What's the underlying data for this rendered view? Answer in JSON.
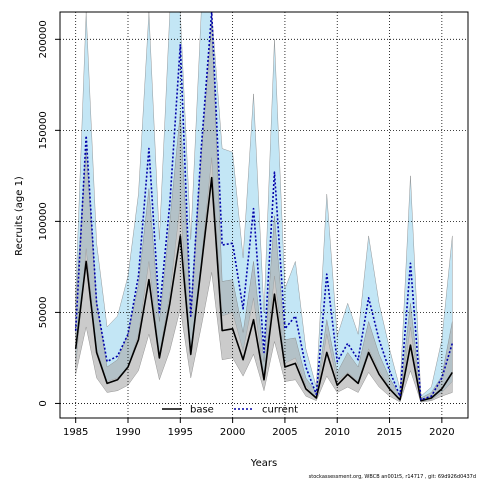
{
  "chart_data": {
    "type": "line",
    "xlabel": "Years",
    "ylabel": "Recruits (age 1)",
    "xlim": [
      1983.5,
      2022.5
    ],
    "ylim": [
      -8000,
      215000
    ],
    "x_ticks": [
      1985,
      1990,
      1995,
      2000,
      2005,
      2010,
      2015,
      2020
    ],
    "x_tick_labels": [
      "1985",
      "1990",
      "1995",
      "2000",
      "2005",
      "2010",
      "2015",
      "2020"
    ],
    "y_ticks": [
      0,
      50000,
      100000,
      150000,
      200000
    ],
    "y_tick_labels": [
      "0",
      "50000",
      "100000",
      "150000",
      "200000"
    ],
    "grid": true,
    "legend_position": "bottom",
    "footnote": "stockassessment.org,  WBCB  an001t5,  r14717 ,  git:  69d926d0437d",
    "x": [
      1985,
      1986,
      1987,
      1988,
      1989,
      1990,
      1991,
      1992,
      1993,
      1994,
      1995,
      1996,
      1997,
      1998,
      1999,
      2000,
      2001,
      2002,
      2003,
      2004,
      2005,
      2006,
      2007,
      2008,
      2009,
      2010,
      2011,
      2012,
      2013,
      2014,
      2015,
      2016,
      2017,
      2018,
      2019,
      2020,
      2021
    ],
    "series": [
      {
        "name": "base",
        "color": "#000000",
        "band_color": "#a9a9a9",
        "line_style": "solid",
        "values": [
          30000,
          78000,
          28000,
          11000,
          13000,
          20000,
          35000,
          68000,
          25000,
          55000,
          92000,
          27000,
          75000,
          124000,
          40000,
          41000,
          24000,
          46000,
          13000,
          60000,
          20000,
          22000,
          8000,
          3000,
          28000,
          10000,
          16000,
          11000,
          28000,
          16000,
          8000,
          2000,
          32000,
          1500,
          3000,
          8000,
          17000
        ],
        "lower": [
          16000,
          42000,
          14000,
          6000,
          7000,
          10000,
          18000,
          38000,
          13000,
          29000,
          52000,
          14000,
          42000,
          72000,
          24000,
          25000,
          15000,
          27000,
          7000,
          34000,
          12000,
          13000,
          4000,
          1500,
          15000,
          6000,
          9000,
          6000,
          17000,
          9000,
          4000,
          800,
          18000,
          700,
          1500,
          4000,
          6000
        ],
        "upper": [
          55000,
          140000,
          56000,
          20000,
          24000,
          38000,
          65000,
          118000,
          45000,
          100000,
          160000,
          50000,
          135000,
          210000,
          67000,
          68000,
          39000,
          78000,
          23000,
          103000,
          35000,
          36000,
          14000,
          6000,
          46000,
          17000,
          28000,
          20000,
          45000,
          27000,
          14000,
          4000,
          55000,
          3000,
          6000,
          15000,
          45000
        ]
      },
      {
        "name": "current",
        "color": "#0000aa",
        "band_color": "#87ceeb",
        "line_style": "dotted",
        "values": [
          40000,
          147000,
          55000,
          23000,
          26000,
          38000,
          70000,
          140000,
          50000,
          110000,
          197000,
          48000,
          140000,
          245000,
          87000,
          88000,
          52000,
          107000,
          28000,
          127000,
          41000,
          48000,
          20000,
          5000,
          71000,
          23000,
          33000,
          24000,
          58000,
          35000,
          18000,
          4000,
          77000,
          2000,
          4000,
          14000,
          33000
        ],
        "lower": [
          20000,
          85000,
          30000,
          12000,
          14000,
          20000,
          38000,
          78000,
          27000,
          60000,
          110000,
          26000,
          78000,
          135000,
          48000,
          50000,
          29000,
          58000,
          14000,
          70000,
          22000,
          25000,
          10000,
          2500,
          38000,
          12000,
          17000,
          12000,
          30000,
          18000,
          9000,
          1800,
          42000,
          1000,
          2000,
          6000,
          12000
        ],
        "upper": [
          60000,
          215000,
          88000,
          42000,
          48000,
          70000,
          115000,
          215000,
          90000,
          215000,
          215000,
          90000,
          215000,
          215000,
          140000,
          138000,
          80000,
          170000,
          50000,
          200000,
          63000,
          78000,
          30000,
          9000,
          115000,
          37000,
          55000,
          38000,
          92000,
          55000,
          30000,
          8000,
          125000,
          4000,
          9000,
          35000,
          92000
        ]
      }
    ]
  }
}
